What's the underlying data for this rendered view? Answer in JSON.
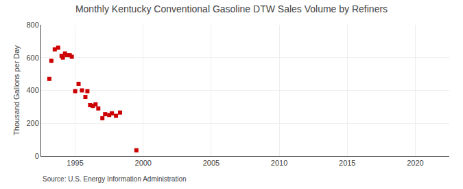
{
  "chart_data": {
    "type": "scatter",
    "title": "Monthly Kentucky Conventional Gasoline DTW Sales Volume by Refiners",
    "ylabel": "Thousand Gallons per Day",
    "source": "Source: U.S. Energy Information Administration",
    "x": [
      1993.1,
      1993.25,
      1993.5,
      1993.75,
      1994.0,
      1994.1,
      1994.25,
      1994.4,
      1994.6,
      1994.75,
      1995.0,
      1995.25,
      1995.5,
      1995.75,
      1995.9,
      1996.1,
      1996.3,
      1996.5,
      1996.7,
      1997.0,
      1997.2,
      1997.5,
      1997.7,
      1998.0,
      1998.3,
      1999.5
    ],
    "values": [
      470,
      580,
      650,
      660,
      610,
      600,
      625,
      615,
      615,
      605,
      395,
      440,
      400,
      360,
      395,
      310,
      305,
      315,
      290,
      230,
      255,
      250,
      260,
      245,
      265,
      35
    ],
    "color": "#cc0000",
    "marker": "square",
    "xlim": [
      1992.5,
      2022.5
    ],
    "ylim": [
      0,
      800
    ],
    "xticks": [
      1995,
      2000,
      2005,
      2010,
      2015,
      2020
    ],
    "yticks": [
      0,
      200,
      400,
      600,
      800
    ],
    "grid": true
  }
}
